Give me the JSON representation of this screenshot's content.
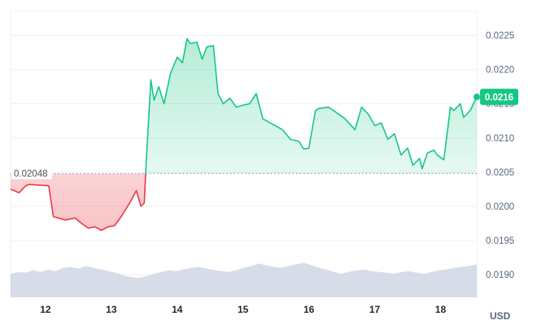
{
  "chart_data": {
    "type": "line",
    "currency": "USD",
    "open_price": 0.02048,
    "open_price_label": "0.02048",
    "last_price": 0.0216,
    "last_price_label": "0.0216",
    "y_ticks": [
      "0.0225",
      "0.0220",
      "0.0215",
      "0.0210",
      "0.0205",
      "0.0200",
      "0.0195",
      "0.0190"
    ],
    "x_ticks": [
      "12",
      "13",
      "14",
      "15",
      "16",
      "17",
      "18"
    ],
    "ylim": [
      0.01867,
      0.02285
    ],
    "xlim": [
      11.47,
      18.55
    ],
    "grid": true,
    "colors": {
      "up": "#16c784",
      "down": "#ea3943",
      "volume": "#cfd6e4",
      "badge": "#16c784"
    },
    "series": [
      {
        "x": [
          11.47,
          11.6,
          11.7,
          11.75,
          12.05,
          12.12,
          12.3,
          12.45,
          12.55,
          12.65,
          12.75,
          12.85,
          12.95,
          13.05,
          13.15,
          13.28,
          13.38,
          13.45,
          13.5,
          13.53,
          13.6,
          13.65,
          13.72,
          13.8,
          13.9,
          14.0,
          14.08,
          14.15,
          14.2,
          14.3,
          14.38,
          14.45,
          14.55,
          14.62,
          14.7,
          14.8,
          14.9,
          15.0,
          15.1,
          15.2,
          15.3,
          15.45,
          15.6,
          15.72,
          15.85,
          15.92,
          16.0,
          16.1,
          16.15,
          16.3,
          16.45,
          16.55,
          16.7,
          16.8,
          16.9,
          17.0,
          17.1,
          17.2,
          17.3,
          17.4,
          17.5,
          17.58,
          17.68,
          17.72,
          17.8,
          17.9,
          17.95,
          18.05,
          18.15,
          18.2,
          18.3,
          18.35,
          18.45,
          18.55
        ],
        "y": [
          0.02025,
          0.0202,
          0.0203,
          0.02032,
          0.0203,
          0.01985,
          0.0198,
          0.01983,
          0.01975,
          0.01968,
          0.0197,
          0.01965,
          0.0197,
          0.01972,
          0.01985,
          0.02005,
          0.02023,
          0.02,
          0.02005,
          0.02065,
          0.02185,
          0.02155,
          0.02175,
          0.0215,
          0.02195,
          0.02218,
          0.0221,
          0.02245,
          0.02238,
          0.0224,
          0.02215,
          0.02233,
          0.02235,
          0.02165,
          0.0215,
          0.02158,
          0.02145,
          0.02148,
          0.0215,
          0.02165,
          0.02128,
          0.0212,
          0.02112,
          0.02098,
          0.02095,
          0.02084,
          0.02085,
          0.0214,
          0.02143,
          0.02145,
          0.02135,
          0.02128,
          0.02112,
          0.02145,
          0.02135,
          0.02118,
          0.02122,
          0.02098,
          0.02106,
          0.02075,
          0.02085,
          0.0206,
          0.0207,
          0.02055,
          0.02078,
          0.02082,
          0.02075,
          0.02068,
          0.02145,
          0.0214,
          0.0215,
          0.0213,
          0.0214,
          0.0216
        ]
      }
    ],
    "volume": [
      0.55,
      0.6,
      0.58,
      0.64,
      0.6,
      0.66,
      0.62,
      0.7,
      0.72,
      0.68,
      0.74,
      0.7,
      0.66,
      0.62,
      0.58,
      0.52,
      0.48,
      0.46,
      0.5,
      0.55,
      0.6,
      0.64,
      0.62,
      0.66,
      0.7,
      0.72,
      0.68,
      0.65,
      0.62,
      0.6,
      0.64,
      0.7,
      0.74,
      0.8,
      0.76,
      0.72,
      0.7,
      0.74,
      0.78,
      0.82,
      0.76,
      0.7,
      0.66,
      0.6,
      0.56,
      0.6,
      0.64,
      0.66,
      0.62,
      0.6,
      0.58,
      0.56,
      0.6,
      0.62,
      0.58,
      0.55,
      0.6,
      0.64,
      0.66,
      0.7,
      0.72,
      0.74,
      0.78
    ]
  }
}
